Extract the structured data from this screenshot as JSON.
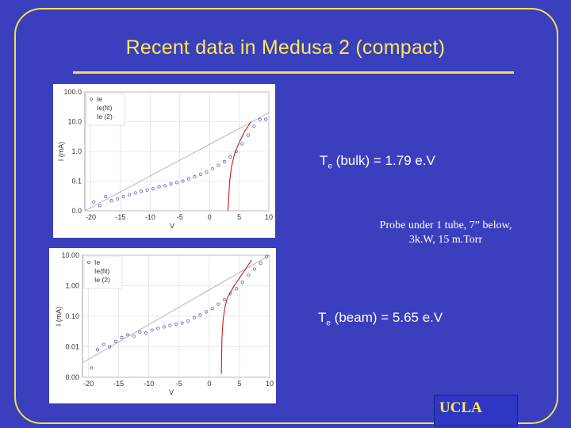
{
  "slide": {
    "title": "Recent data in Medusa 2 (compact)",
    "colors": {
      "background": "#3a3fbe",
      "accent": "#f0e050",
      "text": "#ffffff"
    }
  },
  "annotations": {
    "te_bulk": {
      "symbol": "T",
      "subscript": "e",
      "text": " (bulk) = 1.79 e.V"
    },
    "probe_line1": "Probe under 1 tube, 7” below,",
    "probe_line2": "3k.W, 15 m.Torr",
    "te_beam": {
      "symbol": "T",
      "subscript": "e",
      "text": " (beam) = 5.65 e.V"
    }
  },
  "logo": {
    "text": "UCLA"
  },
  "chart_data": [
    {
      "type": "scatter",
      "xlabel": "V",
      "ylabel": "I (mA)",
      "yscale": "log",
      "x_ticks": [
        -20,
        -15,
        -10,
        -5,
        0,
        5,
        10
      ],
      "x_tick_labels": [
        "-20",
        "-15",
        "-10",
        "-5",
        "0",
        "5",
        "10"
      ],
      "y_tick_labels": [
        "100.0",
        "10.0",
        "1.0",
        "0.1",
        "0.0"
      ],
      "xlim": [
        -21,
        10
      ],
      "legend": {
        "placement": "top-left",
        "entries": [
          "Ie",
          "Ie(fit)",
          "Ie (2)"
        ]
      },
      "series": [
        {
          "name": "Ie",
          "x": [
            -19.5,
            -18.5,
            -17.5,
            -16.5,
            -15.5,
            -14.5,
            -13.5,
            -12.5,
            -11.5,
            -10.5,
            -9.5,
            -8.5,
            -7.5,
            -6.5,
            -5.5,
            -4.5,
            -3.5,
            -2.5,
            -1.5,
            -0.5,
            0.5,
            1.5,
            2.5,
            3.5,
            4.5,
            5.5,
            6.5,
            7.5,
            8.5,
            9.5
          ],
          "y": [
            0.02,
            0.015,
            0.03,
            0.022,
            0.025,
            0.03,
            0.035,
            0.04,
            0.045,
            0.05,
            0.055,
            0.065,
            0.07,
            0.08,
            0.09,
            0.1,
            0.12,
            0.14,
            0.17,
            0.2,
            0.26,
            0.34,
            0.45,
            0.65,
            1.0,
            1.8,
            3.5,
            7.0,
            12.0,
            12.0
          ]
        },
        {
          "name": "Ie(fit)",
          "x": [
            -21,
            10
          ],
          "y": [
            0.0015,
            20
          ]
        },
        {
          "name": "Ie (2)",
          "x": [
            3.1,
            3.2,
            3.4,
            3.7,
            4.2,
            5.0,
            6.0,
            7.0
          ],
          "y": [
            0.001,
            0.02,
            0.1,
            0.3,
            0.8,
            2.0,
            5.0,
            10.0
          ]
        }
      ]
    },
    {
      "type": "scatter",
      "xlabel": "V",
      "ylabel": "I (mA)",
      "yscale": "log",
      "x_ticks": [
        -20,
        -15,
        -10,
        -5,
        0,
        5,
        10
      ],
      "x_tick_labels": [
        "-20",
        "-15",
        "-10",
        "-5",
        "0",
        "5",
        "10"
      ],
      "y_tick_labels": [
        "10.00",
        "1.00",
        "0.10",
        "0.01",
        "0.00"
      ],
      "xlim": [
        -21,
        10
      ],
      "legend": {
        "placement": "top-left",
        "entries": [
          "Ie",
          "Ie(fit)",
          "Ie (2)"
        ]
      },
      "series": [
        {
          "name": "Ie",
          "x": [
            -19.5,
            -18.5,
            -17.5,
            -16.5,
            -15.5,
            -14.5,
            -13.5,
            -12.5,
            -11.5,
            -10.5,
            -9.5,
            -8.5,
            -7.5,
            -6.5,
            -5.5,
            -4.5,
            -3.5,
            -2.5,
            -1.5,
            -0.5,
            0.5,
            1.5,
            2.5,
            3.5,
            4.5,
            5.5,
            6.5,
            7.5,
            8.5,
            9.5
          ],
          "y": [
            0.002,
            0.008,
            0.012,
            0.01,
            0.015,
            0.02,
            0.025,
            0.022,
            0.03,
            0.028,
            0.035,
            0.04,
            0.045,
            0.05,
            0.055,
            0.06,
            0.07,
            0.09,
            0.11,
            0.14,
            0.18,
            0.25,
            0.35,
            0.55,
            0.8,
            1.3,
            2.2,
            3.5,
            5.5,
            9.0
          ]
        },
        {
          "name": "Ie(fit)",
          "x": [
            -21,
            10
          ],
          "y": [
            0.003,
            12
          ]
        },
        {
          "name": "Ie (2)",
          "x": [
            2.0,
            2.1,
            2.3,
            2.6,
            3.0,
            4.0,
            5.5,
            7.0
          ],
          "y": [
            0.0013,
            0.02,
            0.08,
            0.2,
            0.4,
            0.9,
            2.5,
            7.0
          ]
        }
      ]
    }
  ]
}
